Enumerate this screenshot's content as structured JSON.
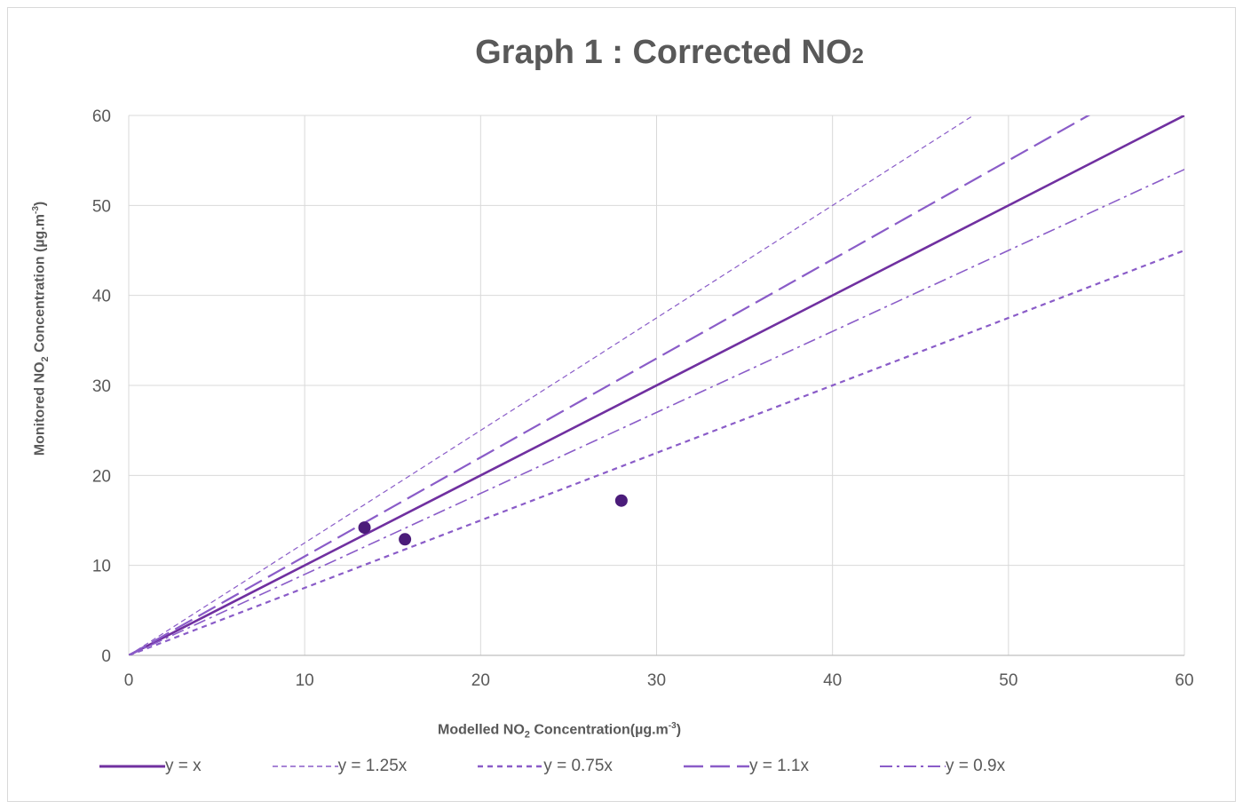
{
  "chart_data": {
    "type": "scatter",
    "title": "Graph 1 : Corrected NO",
    "title_sub": "2",
    "xlabel": {
      "pre": "Modelled NO",
      "sub": "2",
      "mid": " Concentration(µg.m",
      "sup": "-3",
      "post": ")"
    },
    "ylabel": {
      "pre": "Monitored NO",
      "sub": "2",
      "mid": " Concentration (µg.m",
      "sup": "-3",
      "post": ")"
    },
    "xlim": [
      0,
      60
    ],
    "ylim": [
      0,
      60
    ],
    "xticks": [
      0,
      10,
      20,
      30,
      40,
      50,
      60
    ],
    "yticks": [
      0,
      10,
      20,
      30,
      40,
      50,
      60
    ],
    "grid": true,
    "legend_position": "bottom",
    "points": [
      {
        "x": 13.4,
        "y": 14.2
      },
      {
        "x": 15.7,
        "y": 12.9
      },
      {
        "x": 28.0,
        "y": 17.2
      }
    ],
    "point_color": "#4b1c7a",
    "series": [
      {
        "name": "y = x",
        "slope": 1.0,
        "color": "#7030a0",
        "style": "solid"
      },
      {
        "name": "y = 1.25x",
        "slope": 1.25,
        "color": "#8a5cc8",
        "style": "thin-dash"
      },
      {
        "name": "y = 0.75x",
        "slope": 0.75,
        "color": "#8a5cc8",
        "style": "short-dash"
      },
      {
        "name": "y = 1.1x",
        "slope": 1.1,
        "color": "#8a5cc8",
        "style": "long-dash"
      },
      {
        "name": "y = 0.9x",
        "slope": 0.9,
        "color": "#8a5cc8",
        "style": "dash-dot"
      }
    ]
  }
}
